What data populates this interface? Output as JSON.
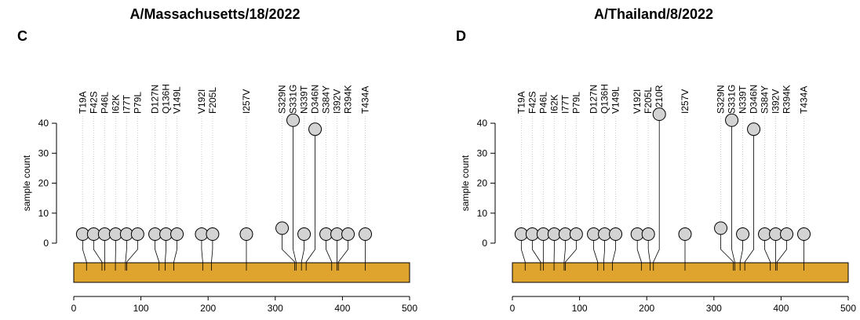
{
  "chart_data": [
    {
      "type": "lollipop",
      "panel": "C",
      "title": "A/Massachusetts/18/2022",
      "ylabel": "sample count",
      "categories": [
        "T19A",
        "F42S",
        "P46L",
        "I62K",
        "I77T",
        "P79L",
        "D127N",
        "Q136H",
        "V149L",
        "V192I",
        "F205L",
        "I257V",
        "S329N",
        "S331G",
        "N339T",
        "D346N",
        "S384Y",
        "I392V",
        "R394K",
        "T434A"
      ],
      "values": [
        3,
        3,
        3,
        3,
        3,
        3,
        3,
        3,
        3,
        3,
        3,
        3,
        5,
        41,
        3,
        38,
        3,
        3,
        3,
        3
      ],
      "ylim": [
        0,
        45
      ],
      "yticks": [
        0,
        10,
        20,
        30,
        40
      ],
      "xlim": [
        0,
        500
      ],
      "xticks": [
        0,
        100,
        200,
        300,
        400,
        500
      ],
      "color": "#d3d3d3",
      "domain_color": "#dea42e"
    },
    {
      "type": "lollipop",
      "panel": "D",
      "title": "A/Thailand/8/2022",
      "ylabel": "sample count",
      "categories": [
        "T19A",
        "F42S",
        "P46L",
        "I62K",
        "I77T",
        "P79L",
        "D127N",
        "Q136H",
        "V149L",
        "V192I",
        "F205L",
        "K210R",
        "I257V",
        "S329N",
        "S331G",
        "N339T",
        "D346N",
        "S384Y",
        "I392V",
        "R394K",
        "T434A"
      ],
      "values": [
        3,
        3,
        3,
        3,
        3,
        3,
        3,
        3,
        3,
        3,
        3,
        43,
        3,
        5,
        41,
        3,
        38,
        3,
        3,
        3,
        3
      ],
      "ylim": [
        0,
        45
      ],
      "yticks": [
        0,
        10,
        20,
        30,
        40
      ],
      "xlim": [
        0,
        500
      ],
      "xticks": [
        0,
        100,
        200,
        300,
        400,
        500
      ],
      "color": "#d3d3d3",
      "domain_color": "#dea42e"
    }
  ]
}
